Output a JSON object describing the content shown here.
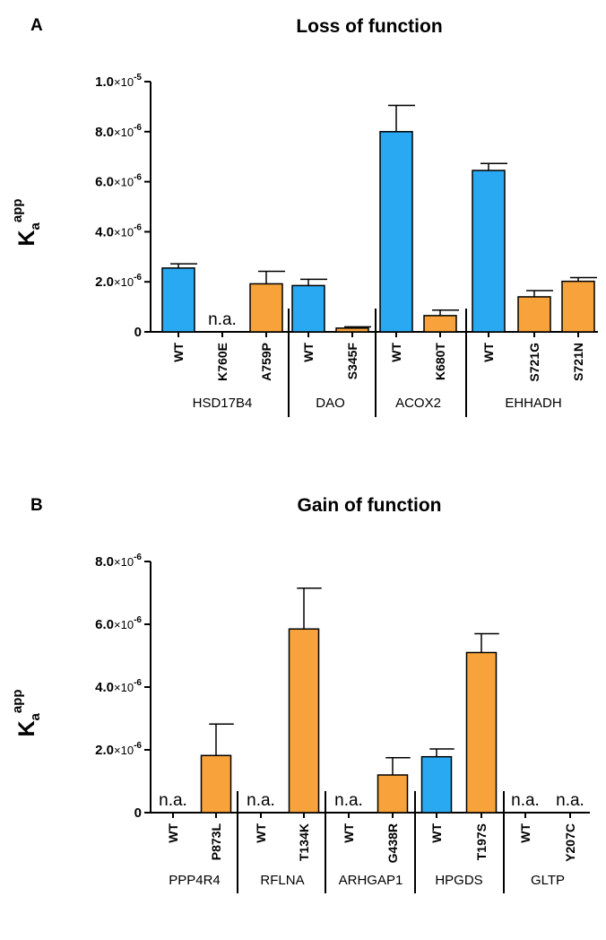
{
  "chart_data": [
    {
      "type": "bar",
      "panel": "A",
      "title": "Loss of function",
      "ylabel": {
        "main": "K",
        "sub": "a",
        "sup": "app"
      },
      "ylim": [
        0,
        1e-05
      ],
      "yticks": [
        {
          "value": 0,
          "mantissa": "0",
          "exponent": ""
        },
        {
          "value": 2e-06,
          "mantissa": "2.0",
          "exponent": "-6"
        },
        {
          "value": 4e-06,
          "mantissa": "4.0",
          "exponent": "-6"
        },
        {
          "value": 6e-06,
          "mantissa": "6.0",
          "exponent": "-6"
        },
        {
          "value": 8e-06,
          "mantissa": "8.0",
          "exponent": "-6"
        },
        {
          "value": 1e-05,
          "mantissa": "1.0",
          "exponent": "-5"
        }
      ],
      "na_label": "n.a.",
      "groups": [
        {
          "name": "HSD17B4",
          "bars": [
            {
              "label": "WT",
              "value": 2.55e-06,
              "error": 1.7e-07,
              "color": "#2aa9f3"
            },
            {
              "label": "K760E",
              "value": null,
              "error": null,
              "color": "#f7a23b"
            },
            {
              "label": "A759P",
              "value": 1.92e-06,
              "error": 5e-07,
              "color": "#f7a23b"
            }
          ]
        },
        {
          "name": "DAO",
          "bars": [
            {
              "label": "WT",
              "value": 1.85e-06,
              "error": 2.5e-07,
              "color": "#2aa9f3"
            },
            {
              "label": "S345F",
              "value": 1.5e-07,
              "error": 5e-08,
              "color": "#f7a23b"
            }
          ]
        },
        {
          "name": "ACOX2",
          "bars": [
            {
              "label": "WT",
              "value": 8e-06,
              "error": 1.05e-06,
              "color": "#2aa9f3"
            },
            {
              "label": "K680T",
              "value": 6.5e-07,
              "error": 2.2e-07,
              "color": "#f7a23b"
            }
          ]
        },
        {
          "name": "EHHADH",
          "bars": [
            {
              "label": "WT",
              "value": 6.45e-06,
              "error": 2.8e-07,
              "color": "#2aa9f3"
            },
            {
              "label": "S721G",
              "value": 1.4e-06,
              "error": 2.5e-07,
              "color": "#f7a23b"
            },
            {
              "label": "S721N",
              "value": 2.02e-06,
              "error": 1.5e-07,
              "color": "#f7a23b"
            }
          ]
        }
      ]
    },
    {
      "type": "bar",
      "panel": "B",
      "title": "Gain of function",
      "ylabel": {
        "main": "K",
        "sub": "a",
        "sup": "app"
      },
      "ylim": [
        0,
        8e-06
      ],
      "yticks": [
        {
          "value": 0,
          "mantissa": "0",
          "exponent": ""
        },
        {
          "value": 2e-06,
          "mantissa": "2.0",
          "exponent": "-6"
        },
        {
          "value": 4e-06,
          "mantissa": "4.0",
          "exponent": "-6"
        },
        {
          "value": 6e-06,
          "mantissa": "6.0",
          "exponent": "-6"
        },
        {
          "value": 8e-06,
          "mantissa": "8.0",
          "exponent": "-6"
        }
      ],
      "na_label": "n.a.",
      "groups": [
        {
          "name": "PPP4R4",
          "bars": [
            {
              "label": "WT",
              "value": null,
              "error": null,
              "color": "#2aa9f3"
            },
            {
              "label": "P873L",
              "value": 1.82e-06,
              "error": 1e-06,
              "color": "#f7a23b"
            }
          ]
        },
        {
          "name": "RFLNA",
          "bars": [
            {
              "label": "WT",
              "value": null,
              "error": null,
              "color": "#2aa9f3"
            },
            {
              "label": "T134K",
              "value": 5.85e-06,
              "error": 1.3e-06,
              "color": "#f7a23b"
            }
          ]
        },
        {
          "name": "ARHGAP1",
          "bars": [
            {
              "label": "WT",
              "value": null,
              "error": null,
              "color": "#2aa9f3"
            },
            {
              "label": "G438R",
              "value": 1.2e-06,
              "error": 5.5e-07,
              "color": "#f7a23b"
            }
          ]
        },
        {
          "name": "HPGDS",
          "bars": [
            {
              "label": "WT",
              "value": 1.78e-06,
              "error": 2.5e-07,
              "color": "#2aa9f3"
            },
            {
              "label": "T197S",
              "value": 5.1e-06,
              "error": 6e-07,
              "color": "#f7a23b"
            }
          ]
        },
        {
          "name": "GLTP",
          "bars": [
            {
              "label": "WT",
              "value": null,
              "error": null,
              "color": "#2aa9f3"
            },
            {
              "label": "Y207C",
              "value": null,
              "error": null,
              "color": "#f7a23b"
            }
          ]
        }
      ]
    }
  ]
}
